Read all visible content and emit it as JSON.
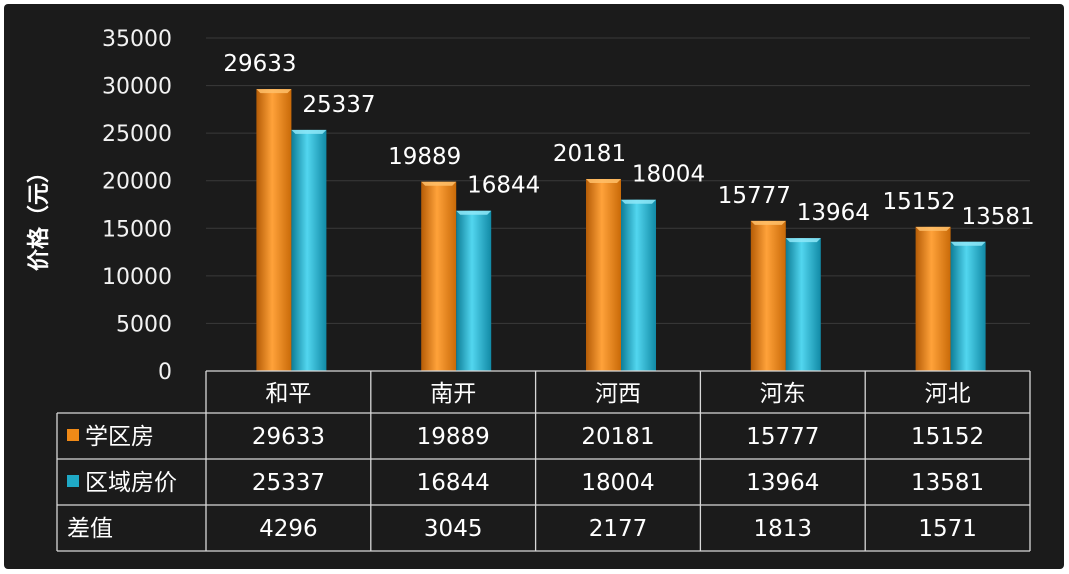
{
  "chart_data": {
    "type": "bar",
    "categories": [
      "和平",
      "南开",
      "河西",
      "河东",
      "河北"
    ],
    "series": [
      {
        "name": "学区房",
        "values": [
          29633,
          19889,
          20181,
          15777,
          15152
        ],
        "color": "#f08a17"
      },
      {
        "name": "区域房价",
        "values": [
          25337,
          16844,
          18004,
          13964,
          13581
        ],
        "color": "#1fa9c6"
      }
    ],
    "extra_row": {
      "name": "差值",
      "values": [
        4296,
        3045,
        2177,
        1813,
        1571
      ]
    },
    "ylabel": "价格（元）",
    "ylim": [
      0,
      35000
    ],
    "yticks": [
      0,
      5000,
      10000,
      15000,
      20000,
      25000,
      30000,
      35000
    ],
    "grid": true,
    "legend": "data-table",
    "background": "#1b1b1b"
  }
}
